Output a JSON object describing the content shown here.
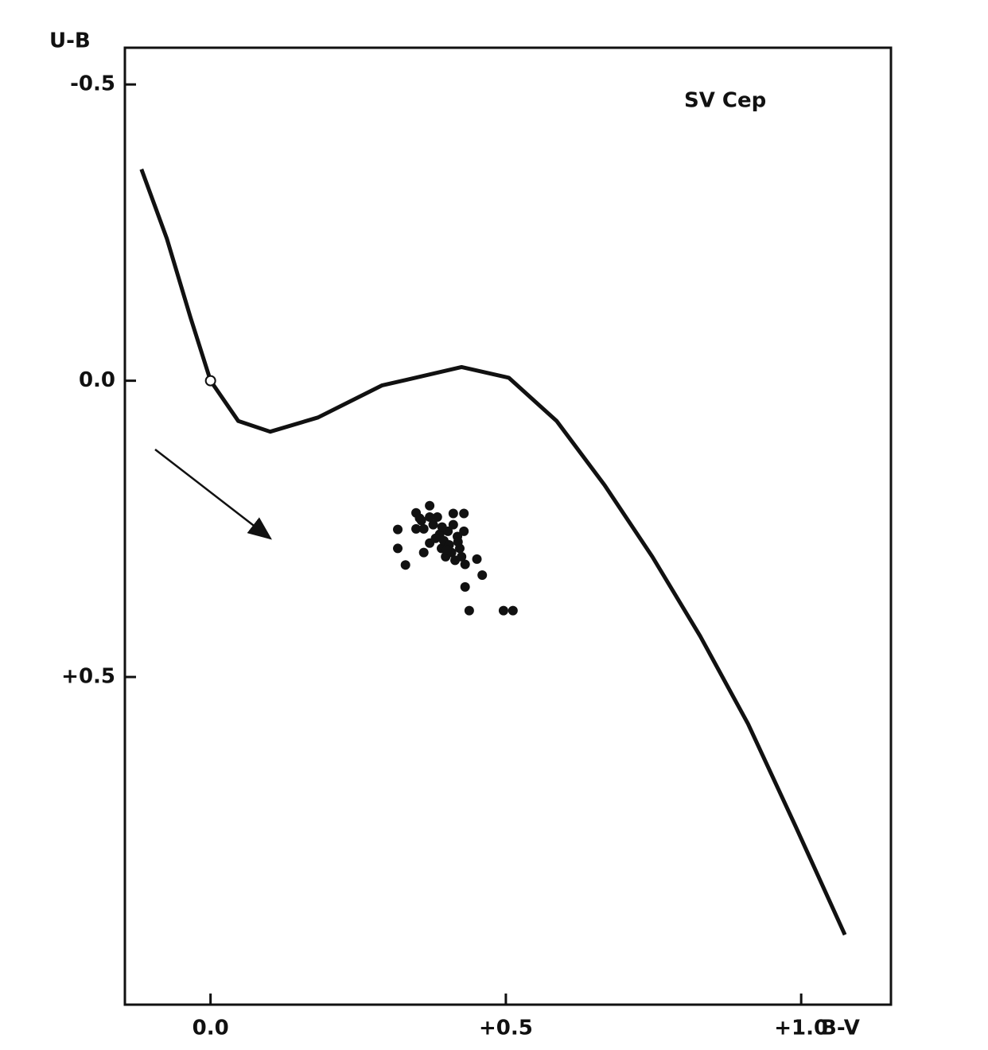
{
  "chart_data": {
    "type": "scatter",
    "annotation": "SV Cep",
    "x_label": "B-V",
    "y_label": "U-B",
    "xlim": [
      -0.145,
      1.152
    ],
    "ylim": [
      -0.562,
      1.053
    ],
    "y_inverted": true,
    "xticks": [
      {
        "value": 0,
        "label": "0.0"
      },
      {
        "value": 0.5,
        "label": "+0.5"
      },
      {
        "value": 1.0,
        "label": "+1.0"
      }
    ],
    "yticks": [
      -0.5,
      {
        "value": 0,
        "label": "0.0"
      },
      {
        "value": 0.5,
        "label": "+0.5"
      }
    ],
    "color": "#111111",
    "line": {
      "x": [
        -0.117,
        -0.074,
        -0.034,
        0,
        0.047,
        0.101,
        0.182,
        0.29,
        0.425,
        0.505,
        0.586,
        0.667,
        0.748,
        0.829,
        0.91,
        0.991,
        1.074
      ],
      "values": [
        -0.357,
        -0.24,
        -0.107,
        0,
        0.068,
        0.086,
        0.062,
        0.008,
        -0.023,
        -0.005,
        0.068,
        0.176,
        0.297,
        0.431,
        0.579,
        0.753,
        0.935
      ]
    },
    "open_point": {
      "x": 0,
      "value": 0
    },
    "points": {
      "x": [
        0.317,
        0.317,
        0.33,
        0.348,
        0.348,
        0.354,
        0.361,
        0.361,
        0.371,
        0.371,
        0.377,
        0.384,
        0.388,
        0.391,
        0.395,
        0.398,
        0.402,
        0.404,
        0.408,
        0.411,
        0.411,
        0.414,
        0.418,
        0.422,
        0.425,
        0.429,
        0.429,
        0.431,
        0.431,
        0.438,
        0.451,
        0.46,
        0.496,
        0.512,
        0.381,
        0.4,
        0.419,
        0.392,
        0.357,
        0.371
      ],
      "values": [
        0.251,
        0.283,
        0.311,
        0.223,
        0.25,
        0.232,
        0.25,
        0.29,
        0.211,
        0.274,
        0.243,
        0.23,
        0.259,
        0.283,
        0.27,
        0.297,
        0.254,
        0.277,
        0.29,
        0.243,
        0.224,
        0.303,
        0.263,
        0.283,
        0.297,
        0.254,
        0.224,
        0.31,
        0.348,
        0.388,
        0.301,
        0.328,
        0.388,
        0.388,
        0.266,
        0.286,
        0.272,
        0.247,
        0.236,
        0.23
      ]
    }
  }
}
